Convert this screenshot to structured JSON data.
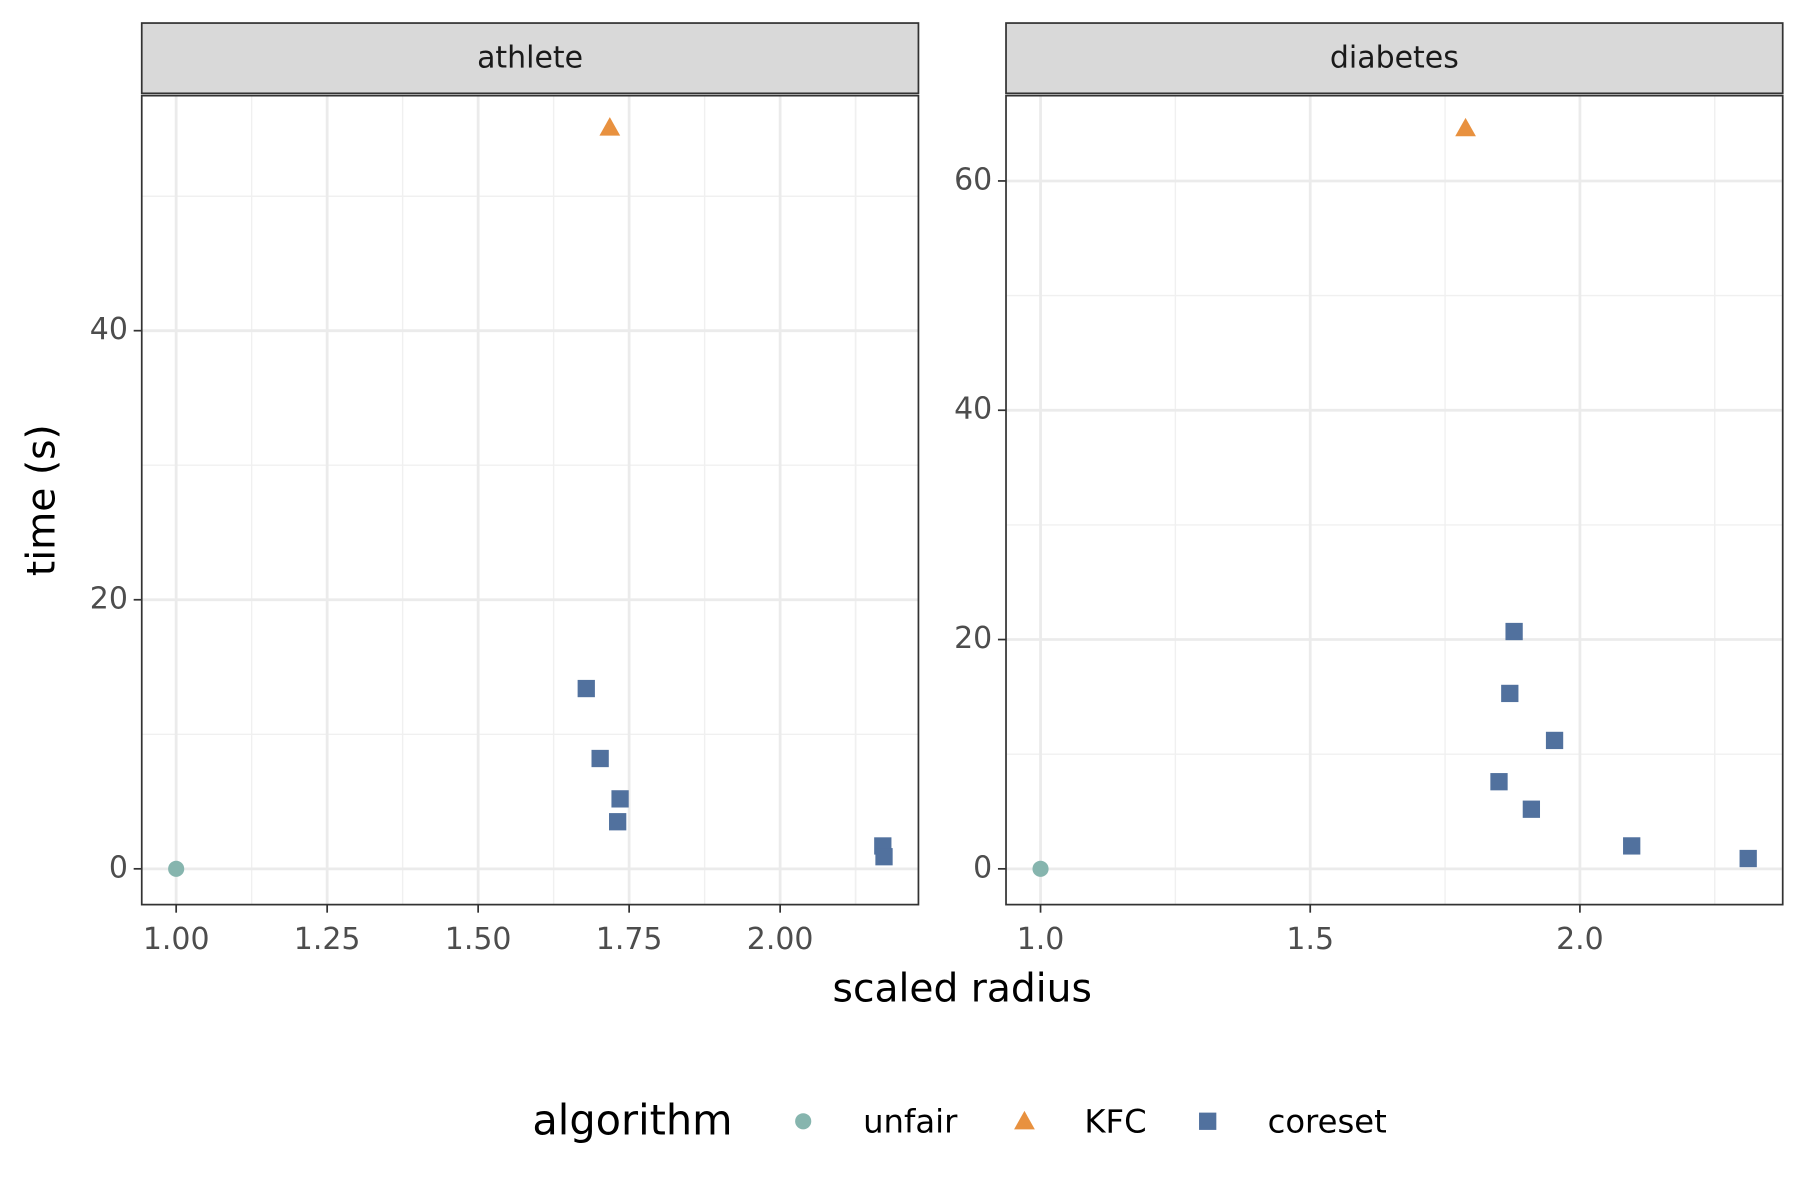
{
  "chart_data": [
    {
      "type": "scatter",
      "title": "athlete",
      "xlim": [
        0.943,
        2.229
      ],
      "ylim": [
        -2.66,
        57.47
      ],
      "xticks": [
        {
          "value": 1,
          "label": "1.00"
        },
        1.25,
        {
          "value": 1.5,
          "label": "1.50"
        },
        1.75,
        {
          "value": 2,
          "label": "2.00"
        }
      ],
      "yticks": [
        0,
        20,
        40
      ],
      "grid": true,
      "minor_grid": true,
      "series": [
        {
          "name": "unfair",
          "color": "#86b5ae",
          "shape": "circle",
          "x": [
            1.0
          ],
          "values": [
            0
          ]
        },
        {
          "name": "KFC",
          "color": "#e8913f",
          "shape": "triangle",
          "x": [
            1.718
          ],
          "values": [
            55.1
          ]
        },
        {
          "name": "coreset",
          "color": "#51719e",
          "shape": "square",
          "x": [
            1.679,
            1.702,
            1.735,
            1.731,
            2.17,
            2.172
          ],
          "values": [
            13.4,
            8.2,
            5.2,
            3.5,
            1.7,
            0.9
          ]
        }
      ]
    },
    {
      "type": "scatter",
      "title": "diabetes",
      "xlim": [
        0.936,
        2.376
      ],
      "ylim": [
        -3.12,
        67.44
      ],
      "xticks": [
        {
          "value": 1,
          "label": "1.0"
        },
        1.5,
        {
          "value": 2,
          "label": "2.0"
        }
      ],
      "yticks": [
        0,
        20,
        40,
        60
      ],
      "grid": true,
      "minor_grid": true,
      "series": [
        {
          "name": "unfair",
          "color": "#86b5ae",
          "shape": "circle",
          "x": [
            1.0
          ],
          "values": [
            0
          ]
        },
        {
          "name": "KFC",
          "color": "#e8913f",
          "shape": "triangle",
          "x": [
            1.788
          ],
          "values": [
            64.6
          ]
        },
        {
          "name": "coreset",
          "color": "#51719e",
          "shape": "square",
          "x": [
            1.878,
            1.87,
            1.953,
            1.85,
            1.91,
            2.096,
            2.312
          ],
          "values": [
            20.7,
            15.3,
            11.2,
            7.6,
            5.2,
            2.0,
            0.9
          ]
        }
      ]
    }
  ],
  "xlabel": "scaled radius",
  "ylabel": "time (s)",
  "legend": {
    "title": "algorithm",
    "position": "bottom"
  }
}
